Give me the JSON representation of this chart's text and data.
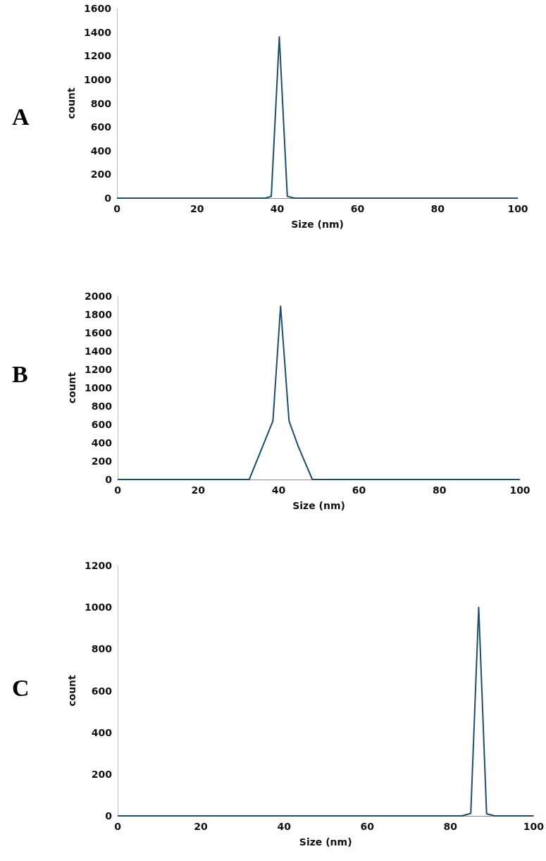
{
  "chart_data": [
    {
      "type": "line",
      "title": "A",
      "xlabel": "Size (nm)",
      "ylabel": "count",
      "x": [
        0,
        37,
        38.5,
        40.5,
        42.5,
        44.3,
        100
      ],
      "values": [
        0,
        0,
        15,
        1360,
        15,
        0,
        0
      ],
      "color": "#1f4e6b",
      "xlim": [
        0,
        100
      ],
      "xticks": [
        0,
        20,
        40,
        60,
        80,
        100
      ],
      "ylim": [
        0,
        1600
      ],
      "yticks": [
        0,
        200,
        400,
        600,
        800,
        1000,
        1200,
        1400,
        1600
      ],
      "marker": "none",
      "line_style": "solid"
    },
    {
      "type": "line",
      "title": "B",
      "xlabel": "Size (nm)",
      "ylabel": "count",
      "x": [
        0,
        32.7,
        36.5,
        38.6,
        40.5,
        42.6,
        44.9,
        48.4,
        100
      ],
      "values": [
        0,
        0,
        410,
        640,
        1890,
        640,
        360,
        0,
        0
      ],
      "color": "#1f4e6b",
      "xlim": [
        0,
        100
      ],
      "xticks": [
        0,
        20,
        40,
        60,
        80,
        100
      ],
      "ylim": [
        0,
        2000
      ],
      "yticks": [
        0,
        200,
        400,
        600,
        800,
        1000,
        1200,
        1400,
        1600,
        1800,
        2000
      ],
      "marker": "none",
      "line_style": "solid"
    },
    {
      "type": "line",
      "title": "C",
      "xlabel": "Size (nm)",
      "ylabel": "count",
      "x": [
        0,
        82.8,
        84.9,
        86.8,
        88.7,
        90.6,
        100
      ],
      "values": [
        0,
        0,
        12,
        1000,
        10,
        0,
        0
      ],
      "color": "#1f4e6b",
      "xlim": [
        0,
        100
      ],
      "xticks": [
        0,
        20,
        40,
        60,
        80,
        100
      ],
      "ylim": [
        0,
        1200
      ],
      "yticks": [
        0,
        200,
        400,
        600,
        800,
        1000,
        1200
      ],
      "marker": "none",
      "line_style": "solid"
    }
  ]
}
